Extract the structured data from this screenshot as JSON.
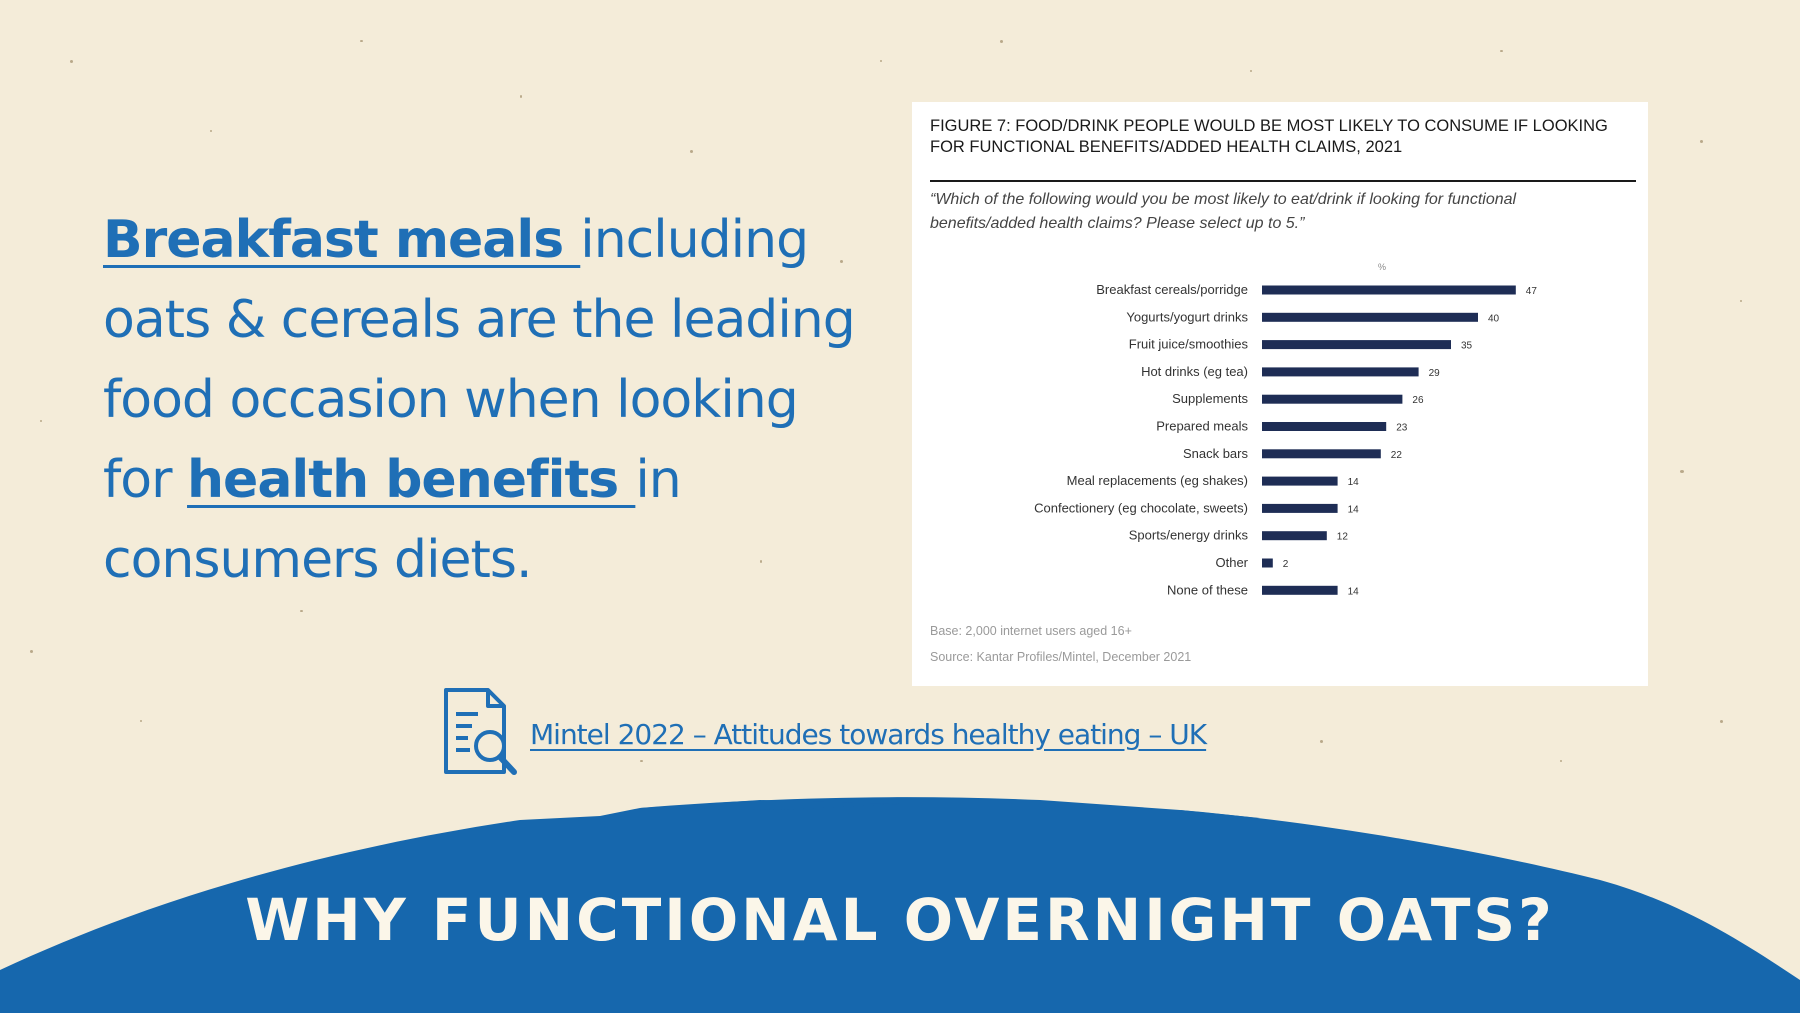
{
  "headline": {
    "em1": "Breakfast meals ",
    "t1": "including oats & cereals are the leading food occasion when looking for ",
    "em2": "health benefits ",
    "t2": "in consumers diets."
  },
  "figure": {
    "title": "FIGURE 7: FOOD/DRINK PEOPLE WOULD BE MOST LIKELY TO CONSUME IF LOOKING FOR FUNCTIONAL BENEFITS/ADDED HEALTH CLAIMS, 2021",
    "question": "“Which of the following would you be most likely to eat/drink if looking for functional benefits/added health claims? Please select up to 5.”",
    "unit_label": "%",
    "base": "Base: 2,000 internet users aged 16+",
    "source": "Source: Kantar Profiles/Mintel, December 2021"
  },
  "chart_data": {
    "type": "bar",
    "orientation": "horizontal",
    "categories": [
      "Breakfast cereals/porridge",
      "Yogurts/yogurt drinks",
      "Fruit juice/smoothies",
      "Hot drinks (eg tea)",
      "Supplements",
      "Prepared meals",
      "Snack bars",
      "Meal replacements (eg shakes)",
      "Confectionery (eg chocolate, sweets)",
      "Sports/energy drinks",
      "Other",
      "None of these"
    ],
    "values": [
      47,
      40,
      35,
      29,
      26,
      23,
      22,
      14,
      14,
      12,
      2,
      14
    ],
    "title": "FIGURE 7: FOOD/DRINK PEOPLE WOULD BE MOST LIKELY TO CONSUME IF LOOKING FOR FUNCTIONAL BENEFITS/ADDED HEALTH CLAIMS, 2021",
    "xlabel": "%",
    "ylabel": "",
    "xlim": [
      0,
      50
    ],
    "grid": false,
    "legend": "none",
    "bar_color": "#1e2d55"
  },
  "source_link": {
    "label": "Mintel 2022 – Attitudes towards healthy eating – UK",
    "icon": "document-search-icon"
  },
  "banner": {
    "title": "WHY FUNCTIONAL OVERNIGHT OATS?"
  },
  "colors": {
    "background": "#f4ecd9",
    "accent": "#1f6fb6",
    "banner": "#1667ad",
    "banner_text": "#fbf6e9"
  }
}
